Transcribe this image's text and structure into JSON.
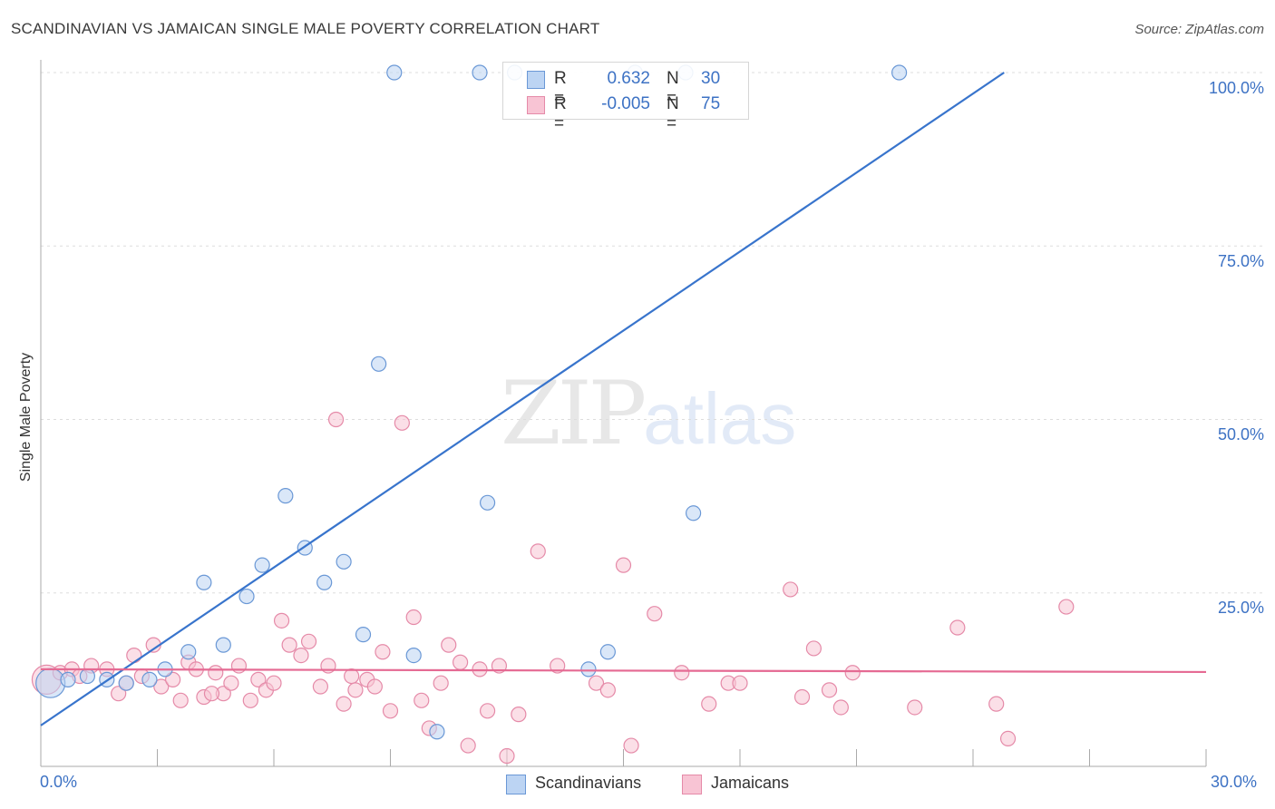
{
  "title": "SCANDINAVIAN VS JAMAICAN SINGLE MALE POVERTY CORRELATION CHART",
  "source": "Source: ZipAtlas.com",
  "watermark": {
    "part1": "ZIP",
    "part2": "atlas"
  },
  "legend": {
    "rows": [
      {
        "r_label": "R =",
        "r_value": "0.632",
        "n_label": "N =",
        "n_value": "30"
      },
      {
        "r_label": "R =",
        "r_value": "-0.005",
        "n_label": "N =",
        "n_value": "75"
      }
    ]
  },
  "colors": {
    "blue_fill": "#bcd4f3",
    "blue_edge": "#6a98d6",
    "blue_line": "#3874cc",
    "pink_fill": "#f8c4d4",
    "pink_edge": "#e58aa8",
    "pink_line": "#e56a93",
    "grid": "#dddddd",
    "tick_label": "#3d72c4"
  },
  "chart_data": {
    "type": "scatter",
    "title": "SCANDINAVIAN VS JAMAICAN SINGLE MALE POVERTY CORRELATION CHART",
    "xlabel": "",
    "ylabel": "Single Male Poverty",
    "xlim": [
      0,
      30
    ],
    "ylim": [
      0,
      104
    ],
    "x_tick_labels": [
      "0.0%",
      "30.0%"
    ],
    "y_ticks": [
      25,
      50,
      75,
      100
    ],
    "y_tick_labels": [
      "25.0%",
      "50.0%",
      "75.0%",
      "100.0%"
    ],
    "grid": true,
    "legend_position": "bottom-center",
    "series": [
      {
        "name": "Scandinavians",
        "r": 0.632,
        "n": 30,
        "trend": {
          "x": [
            0,
            24.8
          ],
          "y": [
            5.9,
            100
          ]
        },
        "points": [
          {
            "x": 0.25,
            "y": 12.0,
            "big": true
          },
          {
            "x": 0.7,
            "y": 12.5
          },
          {
            "x": 1.2,
            "y": 13.0
          },
          {
            "x": 1.7,
            "y": 12.5
          },
          {
            "x": 2.2,
            "y": 12.0
          },
          {
            "x": 2.8,
            "y": 12.5
          },
          {
            "x": 3.2,
            "y": 14.0
          },
          {
            "x": 3.8,
            "y": 16.5
          },
          {
            "x": 4.2,
            "y": 26.5
          },
          {
            "x": 4.7,
            "y": 17.5
          },
          {
            "x": 5.3,
            "y": 24.5
          },
          {
            "x": 5.7,
            "y": 29.0
          },
          {
            "x": 6.3,
            "y": 39.0
          },
          {
            "x": 6.8,
            "y": 31.5
          },
          {
            "x": 7.3,
            "y": 26.5
          },
          {
            "x": 7.8,
            "y": 29.5
          },
          {
            "x": 8.3,
            "y": 19.0
          },
          {
            "x": 8.7,
            "y": 58.0
          },
          {
            "x": 9.1,
            "y": 100.0
          },
          {
            "x": 9.6,
            "y": 16.0
          },
          {
            "x": 10.2,
            "y": 5.0
          },
          {
            "x": 11.3,
            "y": 100.0
          },
          {
            "x": 11.5,
            "y": 38.0
          },
          {
            "x": 12.2,
            "y": 100.0
          },
          {
            "x": 14.1,
            "y": 14.0
          },
          {
            "x": 14.6,
            "y": 16.5
          },
          {
            "x": 15.3,
            "y": 100.0
          },
          {
            "x": 16.6,
            "y": 100.0
          },
          {
            "x": 16.8,
            "y": 36.5
          },
          {
            "x": 22.1,
            "y": 100.0
          }
        ]
      },
      {
        "name": "Jamaicans",
        "r": -0.005,
        "n": 75,
        "trend": {
          "x": [
            0,
            30
          ],
          "y": [
            14.0,
            13.6
          ]
        },
        "points": [
          {
            "x": 0.15,
            "y": 12.5,
            "big": true
          },
          {
            "x": 0.5,
            "y": 13.5
          },
          {
            "x": 0.8,
            "y": 14.0
          },
          {
            "x": 1.0,
            "y": 13.0
          },
          {
            "x": 1.3,
            "y": 14.5
          },
          {
            "x": 1.7,
            "y": 14.0
          },
          {
            "x": 2.0,
            "y": 10.5
          },
          {
            "x": 2.2,
            "y": 12.0
          },
          {
            "x": 2.4,
            "y": 16.0
          },
          {
            "x": 2.6,
            "y": 13.0
          },
          {
            "x": 2.9,
            "y": 17.5
          },
          {
            "x": 3.1,
            "y": 11.5
          },
          {
            "x": 3.4,
            "y": 12.5
          },
          {
            "x": 3.6,
            "y": 9.5
          },
          {
            "x": 3.8,
            "y": 15.0
          },
          {
            "x": 4.0,
            "y": 14.0
          },
          {
            "x": 4.2,
            "y": 10.0
          },
          {
            "x": 4.5,
            "y": 13.5
          },
          {
            "x": 4.7,
            "y": 10.5
          },
          {
            "x": 4.9,
            "y": 12.0
          },
          {
            "x": 5.1,
            "y": 14.5
          },
          {
            "x": 5.4,
            "y": 9.5
          },
          {
            "x": 5.6,
            "y": 12.5
          },
          {
            "x": 5.8,
            "y": 11.0
          },
          {
            "x": 6.0,
            "y": 12.0
          },
          {
            "x": 6.2,
            "y": 21.0
          },
          {
            "x": 6.4,
            "y": 17.5
          },
          {
            "x": 6.7,
            "y": 16.0
          },
          {
            "x": 6.9,
            "y": 18.0
          },
          {
            "x": 7.2,
            "y": 11.5
          },
          {
            "x": 7.4,
            "y": 14.5
          },
          {
            "x": 7.6,
            "y": 50.0
          },
          {
            "x": 7.8,
            "y": 9.0
          },
          {
            "x": 8.1,
            "y": 11.0
          },
          {
            "x": 8.4,
            "y": 12.5
          },
          {
            "x": 8.6,
            "y": 11.5
          },
          {
            "x": 8.8,
            "y": 16.5
          },
          {
            "x": 9.0,
            "y": 8.0
          },
          {
            "x": 9.3,
            "y": 49.5
          },
          {
            "x": 9.6,
            "y": 21.5
          },
          {
            "x": 9.8,
            "y": 9.5
          },
          {
            "x": 10.0,
            "y": 5.5
          },
          {
            "x": 10.3,
            "y": 12.0
          },
          {
            "x": 10.5,
            "y": 17.5
          },
          {
            "x": 10.8,
            "y": 15.0
          },
          {
            "x": 11.0,
            "y": 3.0
          },
          {
            "x": 11.3,
            "y": 14.0
          },
          {
            "x": 11.5,
            "y": 8.0
          },
          {
            "x": 11.8,
            "y": 14.5
          },
          {
            "x": 12.0,
            "y": 1.5
          },
          {
            "x": 12.3,
            "y": 7.5
          },
          {
            "x": 12.8,
            "y": 31.0
          },
          {
            "x": 13.3,
            "y": 14.5
          },
          {
            "x": 14.3,
            "y": 12.0
          },
          {
            "x": 14.6,
            "y": 11.0
          },
          {
            "x": 15.0,
            "y": 29.0
          },
          {
            "x": 15.2,
            "y": 3.0
          },
          {
            "x": 15.8,
            "y": 22.0
          },
          {
            "x": 16.5,
            "y": 13.5
          },
          {
            "x": 17.2,
            "y": 9.0
          },
          {
            "x": 17.7,
            "y": 12.0
          },
          {
            "x": 18.0,
            "y": 12.0
          },
          {
            "x": 19.3,
            "y": 25.5
          },
          {
            "x": 19.6,
            "y": 10.0
          },
          {
            "x": 19.9,
            "y": 17.0
          },
          {
            "x": 20.3,
            "y": 11.0
          },
          {
            "x": 20.6,
            "y": 8.5
          },
          {
            "x": 20.9,
            "y": 13.5
          },
          {
            "x": 22.5,
            "y": 8.5
          },
          {
            "x": 23.6,
            "y": 20.0
          },
          {
            "x": 24.6,
            "y": 9.0
          },
          {
            "x": 24.9,
            "y": 4.0
          },
          {
            "x": 26.4,
            "y": 23.0
          },
          {
            "x": 4.4,
            "y": 10.5
          },
          {
            "x": 8.0,
            "y": 13.0
          }
        ]
      }
    ]
  }
}
